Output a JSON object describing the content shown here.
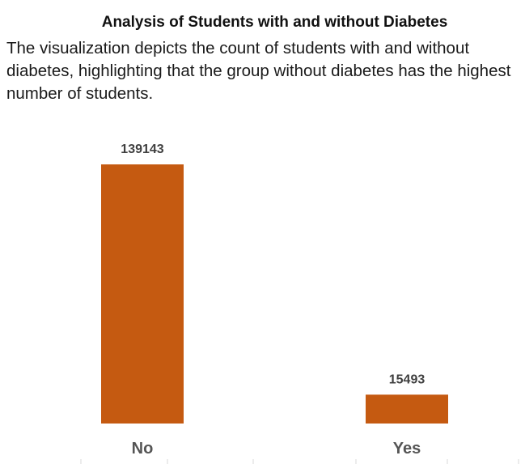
{
  "title": "Analysis of Students with and without Diabetes",
  "subtitle": "The visualization depicts the count of students with and without diabetes, highlighting that the group without diabetes has the highest number of students.",
  "colors": {
    "bar": "#C55A11",
    "value_label": "#3f3f3f",
    "category_label": "#555555",
    "tick": "#d9d9d9"
  },
  "chart_data": {
    "type": "bar",
    "title": "Analysis of Students with and without Diabetes",
    "categories": [
      "No",
      "Yes"
    ],
    "values": [
      139143,
      15493
    ],
    "data_labels": [
      "139143",
      "15493"
    ],
    "ylim": [
      0,
      139143
    ],
    "grid": false,
    "legend": "none",
    "y_axis_visible": false
  }
}
